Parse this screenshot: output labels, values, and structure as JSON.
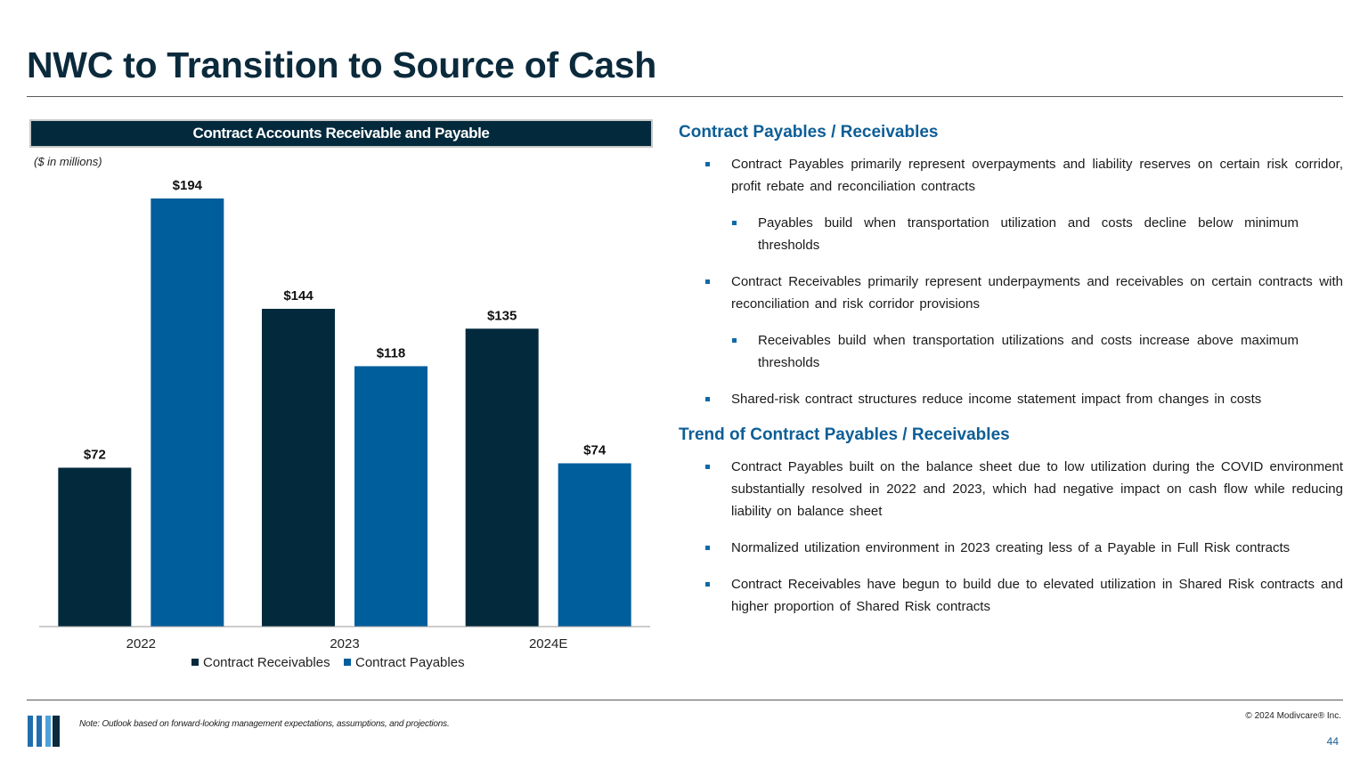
{
  "slide": {
    "title": "NWC to Transition to Source of Cash",
    "chart_header": "Contract Accounts Receivable and Payable",
    "units_note": "($ in millions)",
    "footnote": "Note: Outlook based on forward-looking management expectations, assumptions, and projections.",
    "copyright": "© 2024 Modivcare® Inc.",
    "page_number": "44"
  },
  "chart_data": {
    "type": "bar",
    "title": "Contract Accounts Receivable and Payable",
    "ylabel": "($ in millions)",
    "xlabel": "",
    "categories": [
      "2022",
      "2023",
      "2024E"
    ],
    "series": [
      {
        "name": "Contract Receivables",
        "color": "#032a3c",
        "values": [
          72,
          144,
          135
        ],
        "labels": [
          "$72",
          "$144",
          "$135"
        ]
      },
      {
        "name": "Contract Payables",
        "color": "#005e9c",
        "values": [
          194,
          118,
          74
        ],
        "labels": [
          "$194",
          "$118",
          "$74"
        ]
      }
    ],
    "ylim": [
      0,
      194
    ],
    "grid": false,
    "legend": "bottom"
  },
  "sections": [
    {
      "heading": "Contract Payables / Receivables",
      "bullets": [
        {
          "level": 1,
          "text": "Contract Payables primarily represent overpayments and liability reserves on certain risk corridor, profit rebate and reconciliation contracts"
        },
        {
          "level": 2,
          "text": "Payables build when transportation utilization and costs decline below minimum thresholds"
        },
        {
          "level": 1,
          "text": "Contract Receivables primarily represent underpayments and receivables on certain contracts with reconciliation and risk corridor provisions"
        },
        {
          "level": 2,
          "text": "Receivables build when transportation utilizations and costs increase above maximum thresholds"
        },
        {
          "level": 1,
          "text": "Shared-risk contract structures reduce income statement impact from changes in costs"
        }
      ]
    },
    {
      "heading": "Trend of Contract Payables / Receivables",
      "bullets": [
        {
          "level": 1,
          "text": "Contract Payables built on the balance sheet due to low utilization during the COVID environment substantially resolved in 2022 and 2023, which had negative impact on cash flow while reducing liability on balance sheet"
        },
        {
          "level": 1,
          "text": "Normalized utilization environment in 2023 creating less of a Payable in Full Risk contracts"
        },
        {
          "level": 1,
          "text": "Contract Receivables have begun to build due to elevated utilization in Shared Risk contracts and higher proportion of Shared Risk contracts"
        }
      ]
    }
  ],
  "logo": {
    "colors": [
      "#1f6fae",
      "#1f6fae",
      "#4da3d9",
      "#0b2a3c"
    ]
  }
}
